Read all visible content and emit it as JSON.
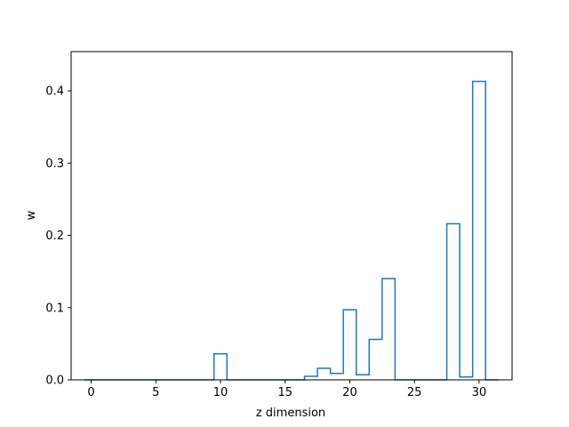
{
  "chart_data": {
    "type": "step",
    "xlabel": "z dimension",
    "ylabel": "w",
    "xlim": [
      -1.55,
      32.55
    ],
    "ylim": [
      0,
      0.4543
    ],
    "x_ticks": [
      0,
      5,
      10,
      15,
      20,
      25,
      30
    ],
    "y_ticks": [
      0.0,
      0.1,
      0.2,
      0.3,
      0.4
    ],
    "grid": false,
    "line_color": "#1f77b4",
    "bin_edges": [
      -0.5,
      0.5,
      1.5,
      2.5,
      3.5,
      4.5,
      5.5,
      6.5,
      7.5,
      8.5,
      9.5,
      10.5,
      11.5,
      12.5,
      13.5,
      14.5,
      15.5,
      16.5,
      17.5,
      18.5,
      19.5,
      20.5,
      21.5,
      22.5,
      23.5,
      24.5,
      25.5,
      26.5,
      27.5,
      28.5,
      29.5,
      30.5,
      31.5
    ],
    "values": [
      0,
      0,
      0,
      0,
      0,
      0,
      0,
      0,
      0,
      0,
      0.036,
      0,
      0,
      0,
      0,
      0,
      0,
      0.005,
      0.016,
      0.009,
      0.097,
      0.007,
      0.056,
      0.14,
      0,
      0,
      0,
      0,
      0.216,
      0.004,
      0.413,
      0
    ]
  }
}
